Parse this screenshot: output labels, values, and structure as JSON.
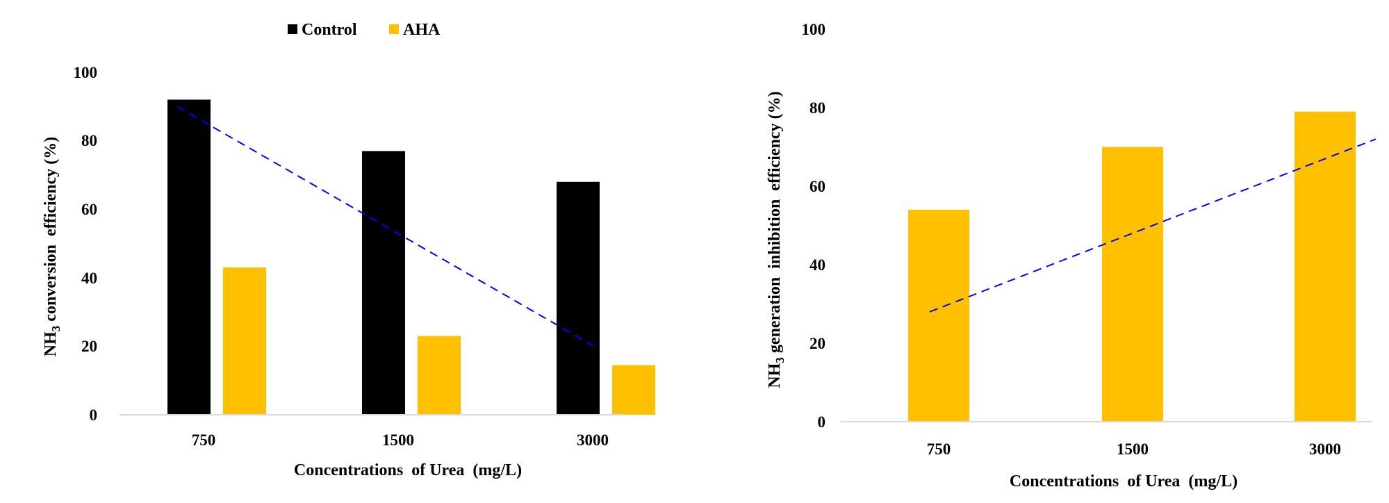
{
  "chart_data": [
    {
      "type": "bar",
      "categories": [
        "750",
        "1500",
        "3000"
      ],
      "series": [
        {
          "name": "Control",
          "values": [
            92,
            77,
            68
          ],
          "color": "#000000"
        },
        {
          "name": "AHA",
          "values": [
            43,
            23,
            14.5
          ],
          "color": "#FFC000"
        }
      ],
      "trendline": {
        "style": "dashed",
        "color": "#0000FF",
        "start": 90,
        "end": 20
      },
      "xlabel": "Concentrations  of Urea  (mg/L)",
      "ylabel": "NH3 conversion  efficiency (%)",
      "ylabel_main": "NH",
      "ylabel_sub": "3",
      "ylabel_rest": " conversion  efficiency (%)",
      "ylim": [
        0,
        100
      ],
      "yticks": [
        "0",
        "20",
        "40",
        "60",
        "80",
        "100"
      ],
      "legend_position": "top",
      "grid": false
    },
    {
      "type": "bar",
      "categories": [
        "750",
        "1500",
        "3000"
      ],
      "series": [
        {
          "values": [
            54,
            70,
            79
          ],
          "color": "#FFC000"
        }
      ],
      "trendline": {
        "style": "dashed",
        "color": "#0000FF",
        "start": 28,
        "end": 72
      },
      "xlabel": "Concentrations  of Urea  (mg/L)",
      "ylabel": "NH3 generation  inhibition  efficiency (%)",
      "ylabel_main": "NH",
      "ylabel_sub": "3",
      "ylabel_rest": " generation  inhibition  efficiency (%)",
      "ylim": [
        0,
        100
      ],
      "yticks": [
        "0",
        "20",
        "40",
        "60",
        "80",
        "100"
      ],
      "grid": false
    }
  ]
}
